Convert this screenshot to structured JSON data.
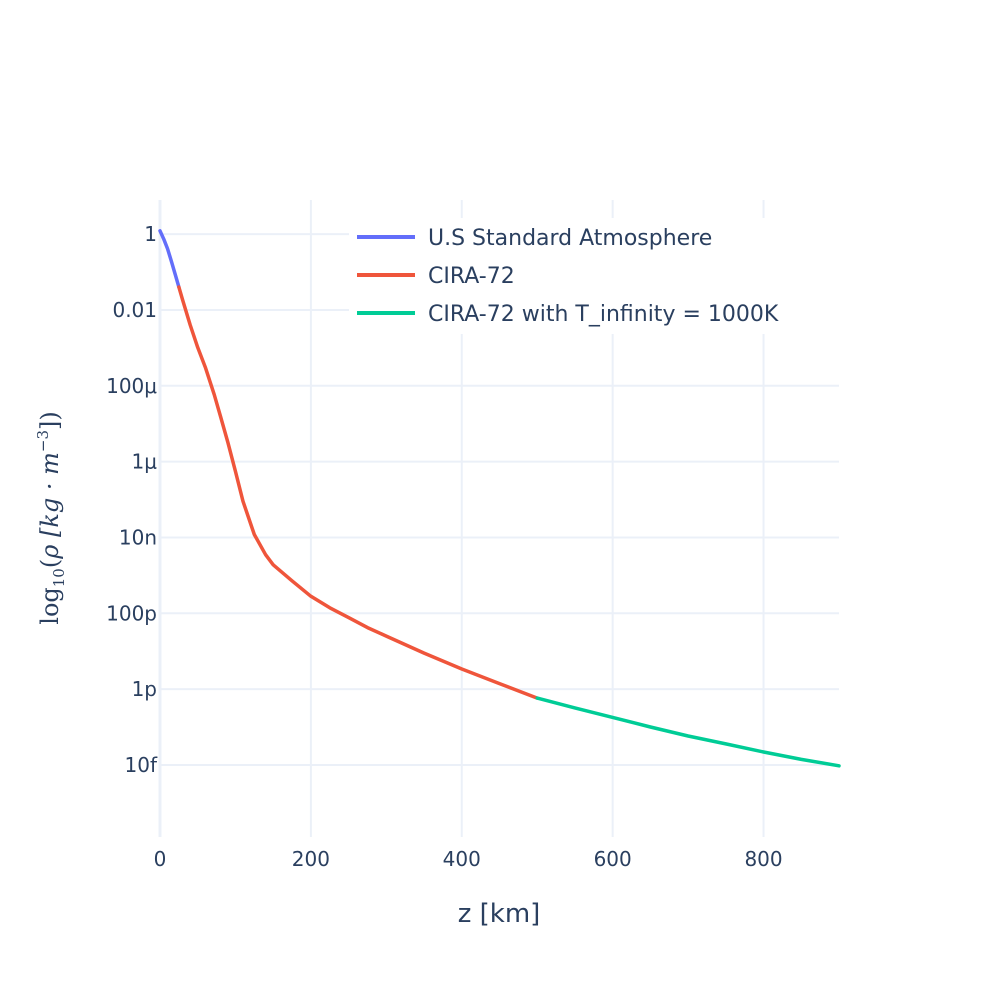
{
  "chart_data": {
    "type": "line",
    "xlabel": "z [km]",
    "ylabel": {
      "func": "log",
      "sub": "10",
      "body": "ρ [kg · m",
      "sup": "−3",
      "close": "])"
    },
    "xlim": [
      0,
      900
    ],
    "ylim_log10": [
      -15.9,
      0.9
    ],
    "yscale": "log",
    "grid": true,
    "legend_position": "top-right",
    "x_ticks": [
      {
        "value": 0,
        "label": "0"
      },
      {
        "value": 200,
        "label": "200"
      },
      {
        "value": 400,
        "label": "400"
      },
      {
        "value": 600,
        "label": "600"
      },
      {
        "value": 800,
        "label": "800"
      }
    ],
    "y_ticks": [
      {
        "value": 1,
        "label": "1"
      },
      {
        "value": 0.01,
        "label": "0.01"
      },
      {
        "value": 0.0001,
        "label": "100μ"
      },
      {
        "value": 1e-06,
        "label": "1μ"
      },
      {
        "value": 1e-08,
        "label": "10n"
      },
      {
        "value": 1e-10,
        "label": "100p"
      },
      {
        "value": 1e-12,
        "label": "1p"
      },
      {
        "value": 1e-14,
        "label": "10f"
      }
    ],
    "series": [
      {
        "name": "U.S Standard Atmosphere",
        "color": "#636efa",
        "x": [
          0,
          5,
          10,
          15,
          20,
          25
        ],
        "y": [
          1.225,
          0.736,
          0.414,
          0.195,
          0.0889,
          0.0401
        ]
      },
      {
        "name": "CIRA-72",
        "color": "#ef553b",
        "x": [
          25,
          30,
          40,
          50,
          60,
          72,
          80,
          90,
          100,
          110,
          125,
          140,
          150,
          175,
          200,
          225,
          250,
          275,
          300,
          350,
          400,
          450,
          500
        ],
        "y": [
          0.0401,
          0.0184,
          0.004,
          0.00103,
          0.00031,
          5.8e-05,
          1.6e-05,
          3.2e-06,
          5.6e-07,
          9e-08,
          1.2e-08,
          3.5e-09,
          1.9e-09,
          7.2e-10,
          2.8e-10,
          1.4e-10,
          7.7e-11,
          4.2e-11,
          2.5e-11,
          8.9e-12,
          3.4e-12,
          1.4e-12,
          5.8e-13
        ]
      },
      {
        "name": "CIRA-72 with T_infinity = 1000K",
        "color": "#00cc96",
        "x": [
          500,
          550,
          600,
          650,
          700,
          750,
          800,
          850,
          900
        ],
        "y": [
          5.8e-13,
          3.2e-13,
          1.8e-13,
          1e-13,
          5.8e-14,
          3.6e-14,
          2.2e-14,
          1.4e-14,
          9.5e-15
        ]
      }
    ]
  }
}
